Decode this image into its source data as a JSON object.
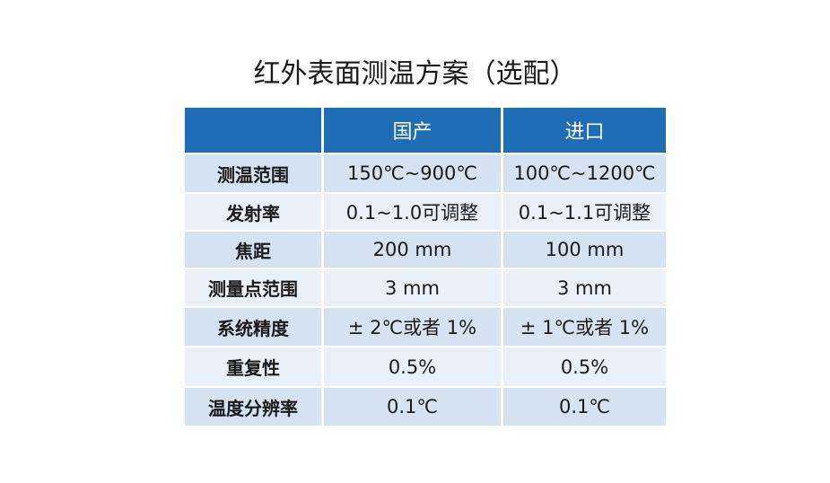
{
  "title": "红外表面测温方案（选配）",
  "table": {
    "columns": [
      "国产",
      "进口"
    ],
    "rows": [
      [
        "测温范围",
        "150℃~900℃",
        "100℃~1200℃"
      ],
      [
        "发射率",
        "0.1~1.0可调整",
        "0.1~1.1可调整"
      ],
      [
        "焦距",
        "200 mm",
        "100 mm"
      ],
      [
        "测量点范围",
        "3 mm",
        "3 mm"
      ],
      [
        "系统精度",
        "± 2℃或者 1%",
        "± 1℃或者 1%"
      ],
      [
        "重复性",
        "0.5%",
        "0.5%"
      ],
      [
        "温度分辨率",
        "0.1℃",
        "0.1℃"
      ]
    ]
  }
}
